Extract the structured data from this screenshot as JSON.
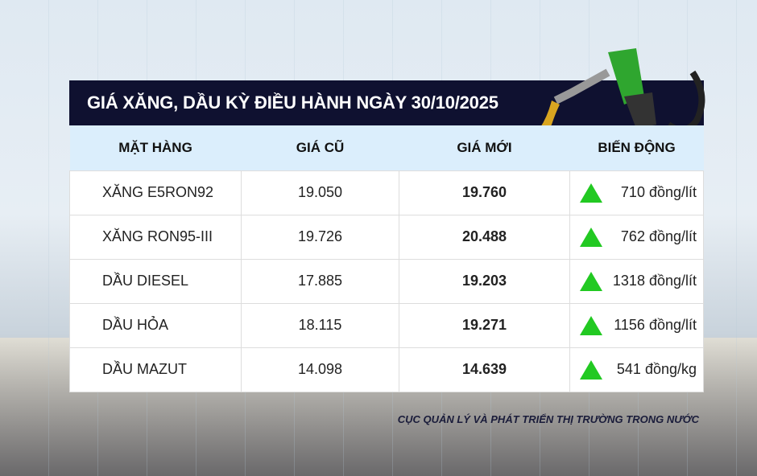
{
  "title": "GIÁ XĂNG, DẦU KỲ ĐIỀU HÀNH NGÀY 30/10/2025",
  "columns": [
    "MẶT HÀNG",
    "GIÁ CŨ",
    "GIÁ MỚI",
    "BIẾN ĐỘNG"
  ],
  "rows": [
    {
      "name": "XĂNG E5RON92",
      "old": "19.050",
      "new": "19.760",
      "change": "710 đồng/lít",
      "direction": "up"
    },
    {
      "name": "XĂNG RON95-III",
      "old": "19.726",
      "new": "20.488",
      "change": "762 đồng/lít",
      "direction": "up"
    },
    {
      "name": "DẦU DIESEL",
      "old": "17.885",
      "new": "19.203",
      "change": "1318 đồng/lít",
      "direction": "up"
    },
    {
      "name": "DẦU HỎA",
      "old": "18.115",
      "new": "19.271",
      "change": "1156 đồng/lít",
      "direction": "up"
    },
    {
      "name": "DẦU MAZUT",
      "old": "14.098",
      "new": "14.639",
      "change": "541 đồng/kg",
      "direction": "up"
    }
  ],
  "source": "CỤC QUẢN LÝ VÀ PHÁT TRIỂN THỊ TRƯỜNG TRONG NƯỚC",
  "colors": {
    "header": "#0f1130",
    "column_header": "#dbeefc",
    "up": "#22c922"
  }
}
